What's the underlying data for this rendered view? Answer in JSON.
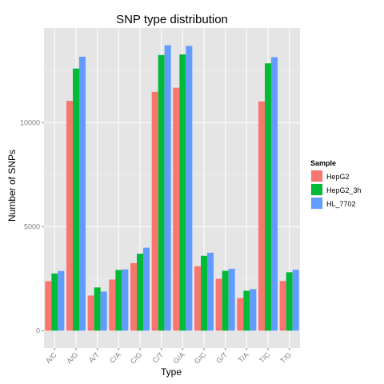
{
  "chart_data": {
    "type": "bar",
    "title": "SNP type distribution",
    "xlabel": "Type",
    "ylabel": "Number of SNPs",
    "categories": [
      "A/C",
      "A/G",
      "A/T",
      "C/A",
      "C/G",
      "C/T",
      "G/A",
      "G/C",
      "G/T",
      "T/A",
      "T/C",
      "T/G"
    ],
    "series": [
      {
        "name": "HepG2",
        "color": "#F8766D",
        "values": [
          2380,
          11050,
          1690,
          2460,
          3250,
          11480,
          11680,
          3100,
          2500,
          1570,
          11020,
          2390
        ]
      },
      {
        "name": "HepG2_3h",
        "color": "#00BA38",
        "values": [
          2750,
          12600,
          2080,
          2920,
          3700,
          13250,
          13280,
          3600,
          2880,
          1920,
          12850,
          2810
        ]
      },
      {
        "name": "HL_7702",
        "color": "#619CFF",
        "values": [
          2870,
          13170,
          1880,
          2950,
          3990,
          13720,
          13690,
          3750,
          2980,
          2000,
          13150,
          2930
        ]
      }
    ],
    "ylim": [
      -830,
      14550
    ],
    "yticks": [
      0,
      5000,
      10000
    ],
    "grid": true,
    "legend": {
      "title": "Sample",
      "position": "right"
    }
  }
}
